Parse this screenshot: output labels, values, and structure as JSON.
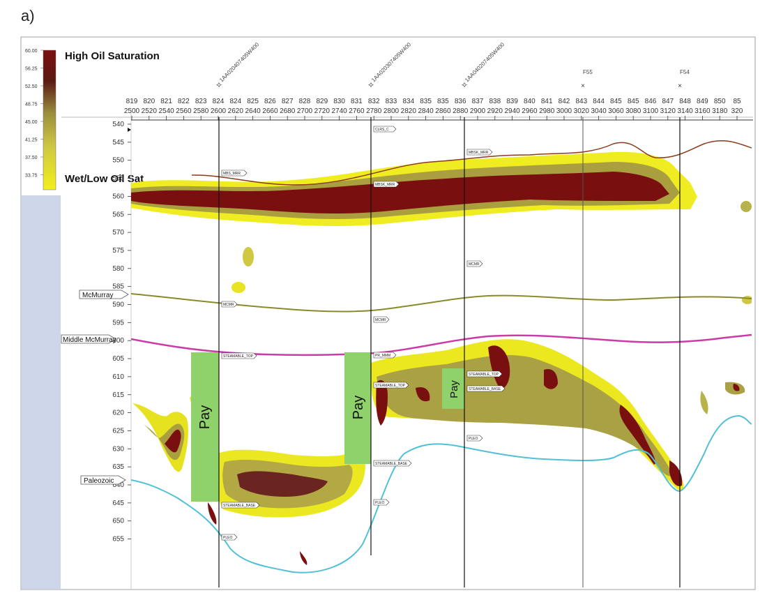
{
  "panel_label": "a)",
  "colors": {
    "high": "#7a0f0f",
    "mid": "#b7b34a",
    "low": "#f2ef1a",
    "pay": "#8fd16b",
    "mcmurray_line": "#8a8a2c",
    "middle_mcmurray_line": "#cc3aa8",
    "top_line": "#8b3a1a",
    "paleozoic_line": "#4fc0d6",
    "sidebar": "#cdd6e8"
  },
  "legend": {
    "high_label": "High Oil Saturation",
    "low_label": "Wet/Low Oil Sat",
    "scale": [
      "60.00",
      "56.25",
      "52.50",
      "48.75",
      "45.00",
      "41.25",
      "37.50",
      "33.75"
    ]
  },
  "horizons": {
    "mcmurray": "McMurray",
    "middle_mcmurray": "Middle McMurray",
    "paleozoic": "Paleozoic"
  },
  "pay_label": "Pay",
  "wells": [
    {
      "name": "1AA020407405W400",
      "symbol": "✧"
    },
    {
      "name": "1AA020307405W400",
      "symbol": "✧"
    },
    {
      "name": "1AA040207405W400",
      "symbol": "✧"
    },
    {
      "name": "F55",
      "symbol": "×"
    },
    {
      "name": "F54",
      "symbol": "×"
    }
  ],
  "markers": {
    "w1": [
      "MBS_MRR",
      "MBSK_MRR",
      "MCMR",
      "STEAMABLE_TOP",
      "STEAMABLE_BASE",
      "PLEO"
    ],
    "w2": [
      "CLRS_C",
      "MBSK_MRR",
      "MCMR",
      "PR_MMM",
      "STEAMABLE_TOP",
      "STEAMABLE_BASE",
      "PLEO"
    ],
    "w3": [
      "MBSK_MRR",
      "MCMR",
      "STEAMABLE_TOP",
      "STEAMABLE_BASE",
      "PLEO"
    ]
  },
  "chart_data": {
    "type": "heatmap",
    "title": "",
    "variable": "Oil saturation",
    "color_scale": {
      "min": 33.75,
      "max": 60.0,
      "ticks": [
        60.0,
        56.25,
        52.5,
        48.75,
        45.0,
        41.25,
        37.5,
        33.75
      ]
    },
    "x_top_ticks": [
      "819",
      "820",
      "821",
      "822",
      "823",
      "824",
      "824",
      "825",
      "826",
      "827",
      "828",
      "829",
      "830",
      "831",
      "832",
      "833",
      "834",
      "835",
      "835",
      "836",
      "837",
      "838",
      "839",
      "840",
      "841",
      "842",
      "843",
      "844",
      "845",
      "845",
      "846",
      "847",
      "848",
      "849",
      "850",
      "85"
    ],
    "x_bottom_ticks": [
      "2500",
      "2520",
      "2540",
      "2560",
      "2580",
      "2600",
      "2620",
      "2640",
      "2660",
      "2680",
      "2700",
      "2720",
      "2740",
      "2760",
      "2780",
      "2800",
      "2820",
      "2840",
      "2860",
      "2880",
      "2900",
      "2920",
      "2940",
      "2960",
      "2980",
      "3000",
      "3020",
      "3040",
      "3060",
      "3080",
      "3100",
      "3120",
      "3140",
      "3160",
      "3180",
      "320"
    ],
    "y_ticks": [
      540,
      545,
      550,
      555,
      560,
      565,
      570,
      575,
      580,
      585,
      590,
      595,
      600,
      605,
      610,
      615,
      620,
      625,
      630,
      635,
      640,
      645,
      650,
      655
    ],
    "ylim": [
      538,
      657
    ],
    "well_traces_x": [
      2600,
      2766,
      2880,
      3005,
      3120
    ],
    "horizon_series": [
      {
        "name": "McMurray",
        "x": [
          2500,
          2600,
          2700,
          2766,
          2880,
          3000,
          3100,
          3200
        ],
        "depth": [
          583,
          584.5,
          587,
          587,
          584,
          585,
          583.5,
          584
        ]
      },
      {
        "name": "Middle McMurray",
        "x": [
          2500,
          2600,
          2700,
          2766,
          2880,
          3000,
          3100,
          3200
        ],
        "depth": [
          597,
          598.5,
          598.5,
          597,
          595,
          598,
          598,
          596
        ]
      },
      {
        "name": "Paleozoic",
        "x": [
          2500,
          2550,
          2600,
          2650,
          2700,
          2766,
          2800,
          2880,
          3000,
          3080,
          3110,
          3160,
          3200
        ],
        "depth": [
          630,
          635,
          644,
          651,
          654,
          640,
          626,
          622,
          627,
          623,
          633,
          615,
          616
        ]
      }
    ],
    "pay_intervals": [
      {
        "well_x": 2600,
        "top": 598,
        "base": 636
      },
      {
        "well_x": 2766,
        "top": 598,
        "base": 627
      },
      {
        "well_x": 2880,
        "top": 603,
        "base": 612
      }
    ]
  }
}
